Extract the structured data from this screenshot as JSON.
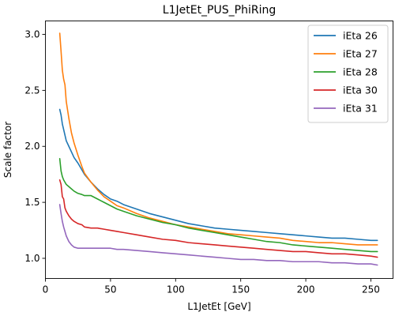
{
  "chart_data": {
    "type": "line",
    "title": "L1JetEt_PUS_PhiRing",
    "xlabel": "L1JetEt [GeV]",
    "ylabel": "Scale factor",
    "xlim": [
      0,
      267
    ],
    "ylim": [
      0.82,
      3.12
    ],
    "xticks": [
      0,
      50,
      100,
      150,
      200,
      250
    ],
    "yticks": [
      1.0,
      1.5,
      2.0,
      2.5,
      3.0
    ],
    "ytick_labels": [
      "1.0",
      "1.5",
      "2.0",
      "2.5",
      "3.0"
    ],
    "legend_position": "top-right",
    "grid": false,
    "x": [
      11,
      12,
      13,
      14,
      15,
      16,
      18,
      20,
      22,
      25,
      28,
      30,
      35,
      40,
      45,
      50,
      55,
      60,
      70,
      80,
      90,
      100,
      110,
      120,
      130,
      140,
      150,
      160,
      170,
      180,
      190,
      200,
      210,
      220,
      230,
      240,
      250,
      255
    ],
    "series": [
      {
        "name": "iEta 26",
        "color": "#1f77b4",
        "values": [
          2.33,
          2.28,
          2.2,
          2.15,
          2.1,
          2.05,
          2.0,
          1.95,
          1.9,
          1.85,
          1.79,
          1.75,
          1.68,
          1.62,
          1.57,
          1.53,
          1.51,
          1.48,
          1.44,
          1.4,
          1.37,
          1.34,
          1.31,
          1.29,
          1.27,
          1.26,
          1.25,
          1.24,
          1.23,
          1.22,
          1.21,
          1.2,
          1.19,
          1.18,
          1.18,
          1.17,
          1.16,
          1.16
        ]
      },
      {
        "name": "iEta 27",
        "color": "#ff7f0e",
        "values": [
          3.01,
          2.85,
          2.68,
          2.6,
          2.55,
          2.4,
          2.25,
          2.12,
          2.03,
          1.92,
          1.82,
          1.76,
          1.68,
          1.61,
          1.55,
          1.51,
          1.47,
          1.45,
          1.4,
          1.36,
          1.33,
          1.3,
          1.28,
          1.26,
          1.24,
          1.22,
          1.21,
          1.2,
          1.19,
          1.18,
          1.16,
          1.15,
          1.14,
          1.14,
          1.13,
          1.12,
          1.12,
          1.12
        ]
      },
      {
        "name": "iEta 28",
        "color": "#2ca02c",
        "values": [
          1.89,
          1.78,
          1.73,
          1.7,
          1.68,
          1.66,
          1.64,
          1.62,
          1.6,
          1.58,
          1.57,
          1.56,
          1.56,
          1.53,
          1.5,
          1.47,
          1.44,
          1.42,
          1.38,
          1.35,
          1.32,
          1.3,
          1.27,
          1.25,
          1.23,
          1.21,
          1.19,
          1.17,
          1.15,
          1.14,
          1.12,
          1.11,
          1.1,
          1.09,
          1.08,
          1.07,
          1.06,
          1.06
        ]
      },
      {
        "name": "iEta 30",
        "color": "#d62728",
        "values": [
          1.7,
          1.66,
          1.55,
          1.53,
          1.45,
          1.42,
          1.38,
          1.35,
          1.33,
          1.31,
          1.3,
          1.28,
          1.27,
          1.27,
          1.26,
          1.25,
          1.24,
          1.23,
          1.21,
          1.19,
          1.17,
          1.16,
          1.14,
          1.13,
          1.12,
          1.11,
          1.1,
          1.09,
          1.08,
          1.07,
          1.06,
          1.06,
          1.05,
          1.04,
          1.04,
          1.03,
          1.02,
          1.01
        ]
      },
      {
        "name": "iEta 31",
        "color": "#9467bd",
        "values": [
          1.48,
          1.4,
          1.33,
          1.28,
          1.24,
          1.2,
          1.15,
          1.12,
          1.1,
          1.09,
          1.09,
          1.09,
          1.09,
          1.09,
          1.09,
          1.09,
          1.08,
          1.08,
          1.07,
          1.06,
          1.05,
          1.04,
          1.03,
          1.02,
          1.01,
          1.0,
          0.99,
          0.99,
          0.98,
          0.98,
          0.97,
          0.97,
          0.97,
          0.96,
          0.96,
          0.95,
          0.95,
          0.94
        ]
      }
    ]
  }
}
